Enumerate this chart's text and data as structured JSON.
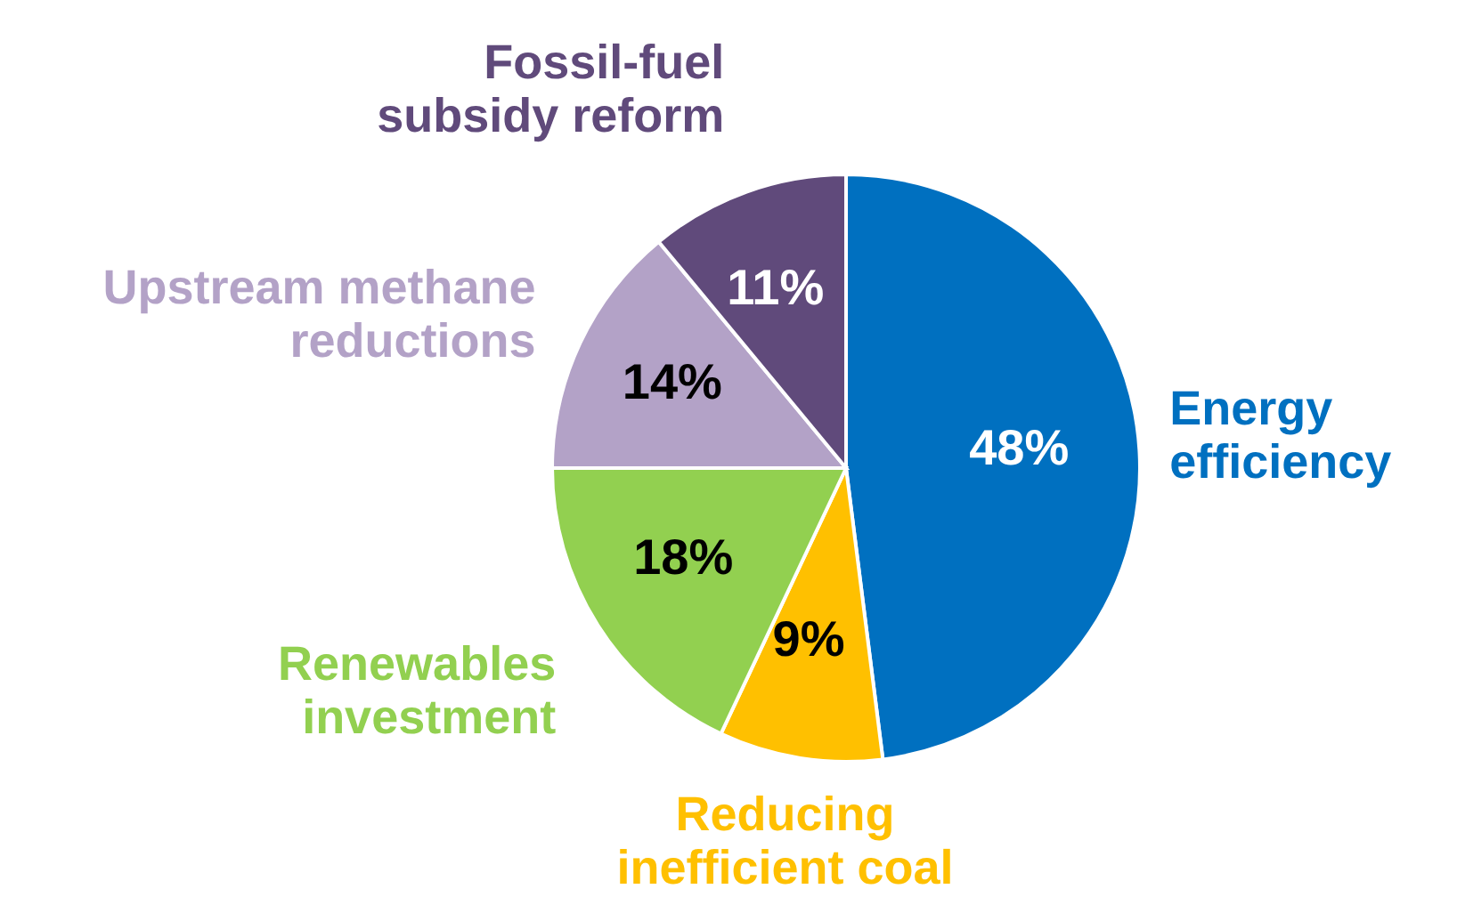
{
  "chart_data": {
    "type": "pie",
    "categories": [
      "Energy efficiency",
      "Reducing inefficient coal",
      "Renewables investment",
      "Upstream methane reductions",
      "Fossil-fuel subsidy reform"
    ],
    "values": [
      48,
      9,
      18,
      14,
      11
    ],
    "colors": [
      "#0070c0",
      "#ffc000",
      "#92d050",
      "#b3a2c7",
      "#604a7b"
    ],
    "value_labels": [
      "48%",
      "9%",
      "18%",
      "14%",
      "11%"
    ],
    "legend": false
  }
}
